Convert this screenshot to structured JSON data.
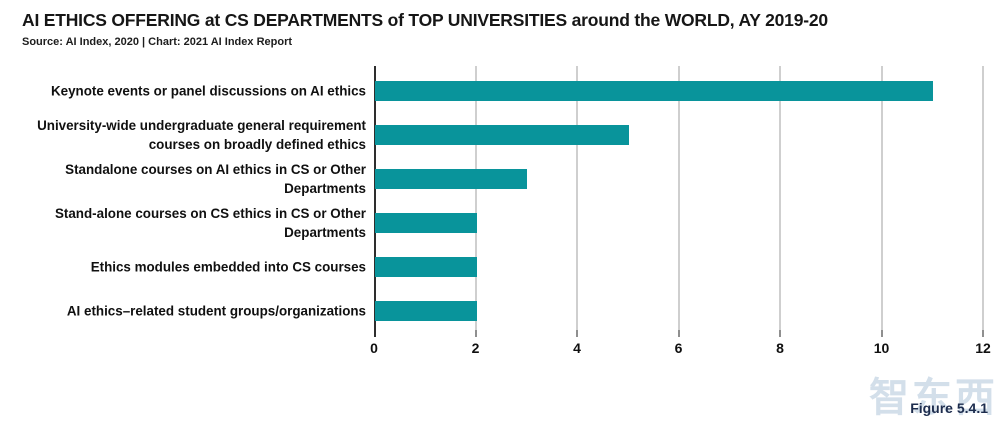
{
  "header": {
    "title": "AI ETHICS OFFERING at CS DEPARTMENTS of TOP UNIVERSITIES around the WORLD, AY 2019-20",
    "source": "Source: AI Index, 2020 | Chart: 2021 AI Index Report"
  },
  "figure_label": "Figure 5.4.1",
  "watermark": "智东西",
  "colors": {
    "bar": "#09949B",
    "axis": "#2e2e2e",
    "gridline": "#cfcfcf",
    "figure_label": "#1d2c4d"
  },
  "chart_data": {
    "type": "bar",
    "orientation": "horizontal",
    "title": "AI ETHICS OFFERING at CS DEPARTMENTS of TOP UNIVERSITIES around the WORLD, AY 2019-20",
    "source": "Source: AI Index, 2020 | Chart: 2021 AI Index Report",
    "categories": [
      "Keynote events or panel discussions on AI ethics",
      "University-wide undergraduate general requirement courses on broadly defined ethics",
      "Standalone courses on AI ethics in CS or Other Departments",
      "Stand-alone courses on CS ethics in CS or Other Departments",
      "Ethics modules embedded into CS courses",
      "AI ethics–related student groups/organizations"
    ],
    "category_lines": [
      [
        "Keynote events or panel discussions on AI ethics"
      ],
      [
        "University-wide undergraduate general requirement",
        "courses on broadly defined ethics"
      ],
      [
        "Standalone courses on AI ethics in CS or Other",
        "Departments"
      ],
      [
        "Stand-alone courses on CS ethics in CS or Other",
        "Departments"
      ],
      [
        "Ethics modules embedded into CS courses"
      ],
      [
        "AI ethics–related student groups/organizations"
      ]
    ],
    "values": [
      11,
      5,
      3,
      2,
      2,
      2
    ],
    "xlim": [
      0,
      12
    ],
    "xticks": [
      0,
      2,
      4,
      6,
      8,
      10,
      12
    ],
    "grid": "vertical",
    "legend": "none",
    "bar_color": "#09949B"
  }
}
